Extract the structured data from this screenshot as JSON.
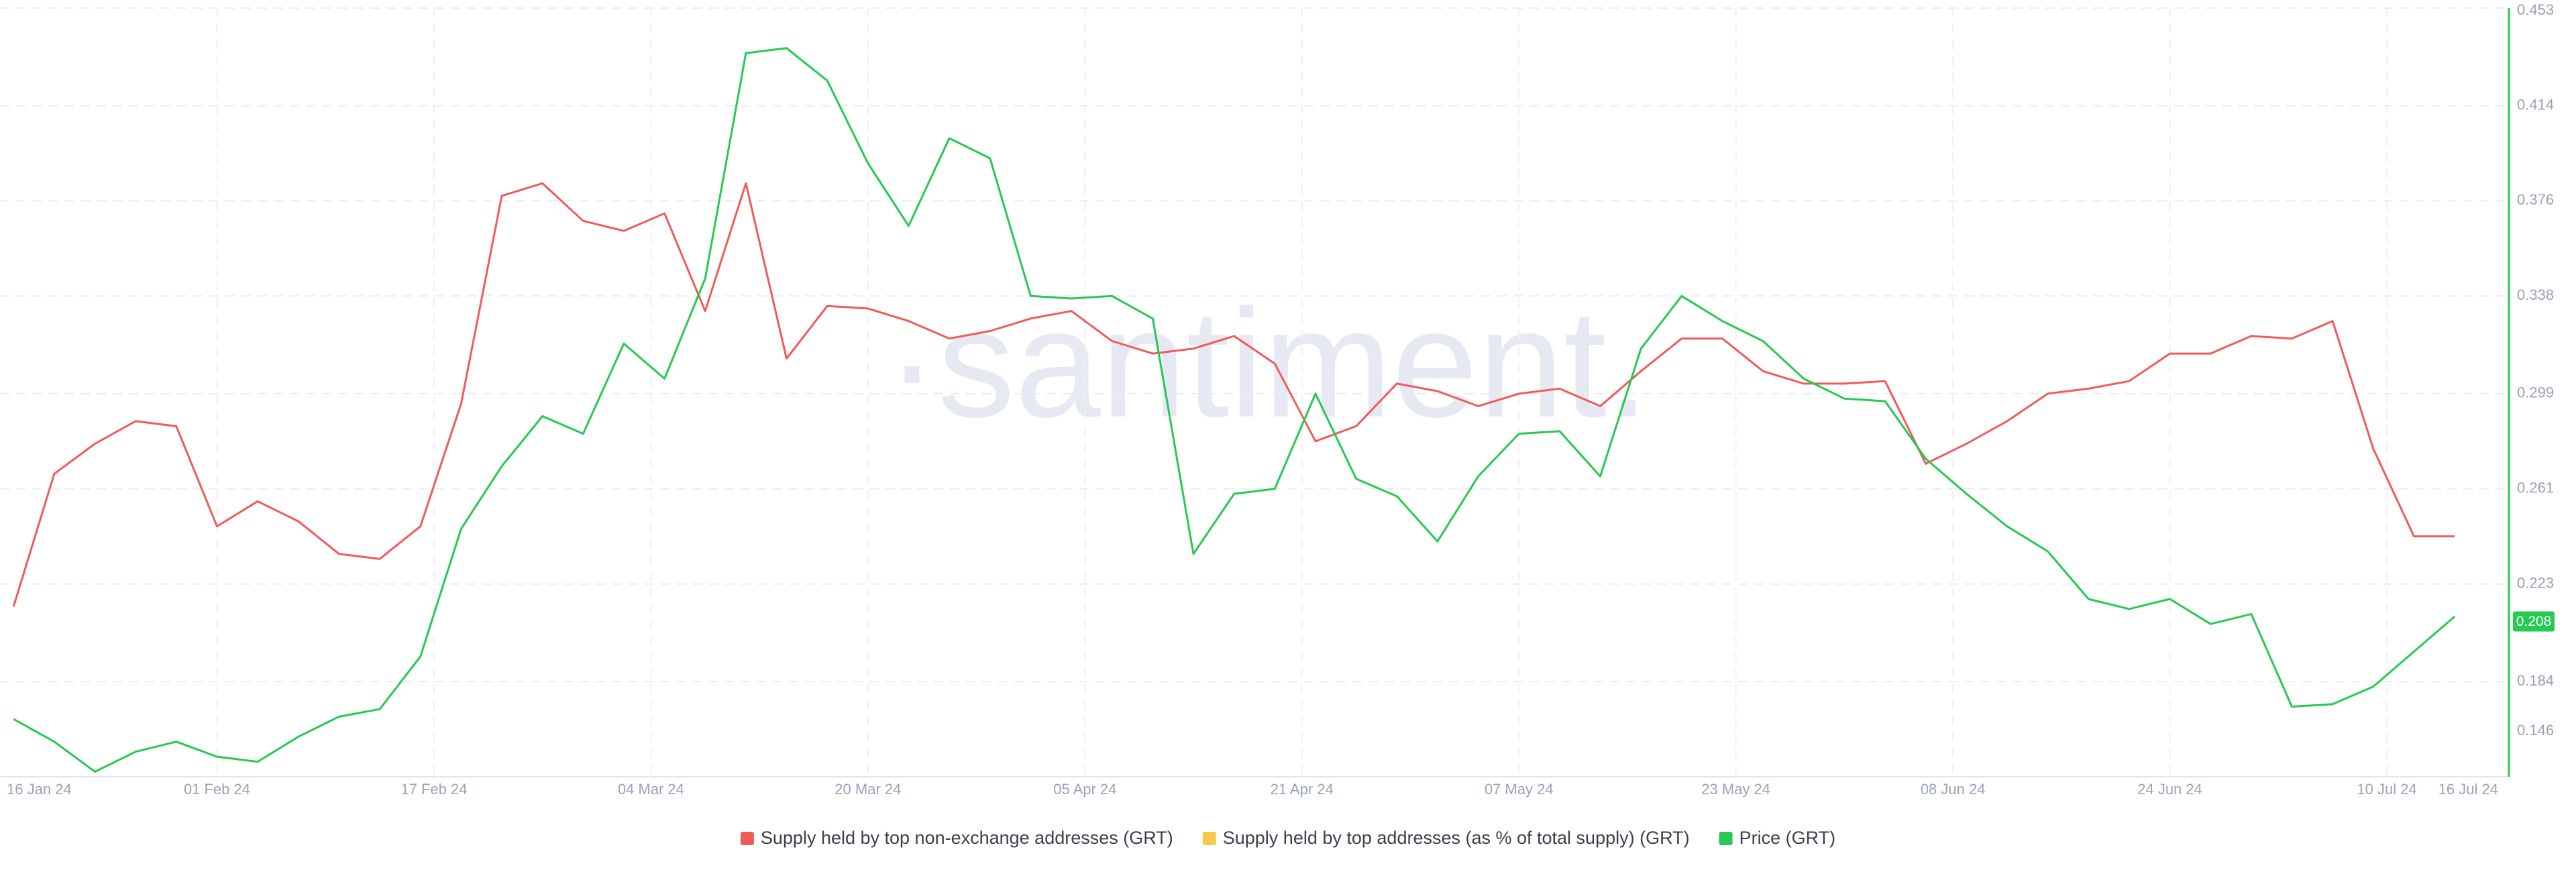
{
  "chart_data": {
    "type": "line",
    "watermark": "·santiment.",
    "x": [
      "17 Jan 24",
      "20 Jan 24",
      "23 Jan 24",
      "26 Jan 24",
      "29 Jan 24",
      "01 Feb 24",
      "04 Feb 24",
      "07 Feb 24",
      "10 Feb 24",
      "13 Feb 24",
      "16 Feb 24",
      "19 Feb 24",
      "22 Feb 24",
      "25 Feb 24",
      "28 Feb 24",
      "02 Mar 24",
      "05 Mar 24",
      "08 Mar 24",
      "11 Mar 24",
      "14 Mar 24",
      "17 Mar 24",
      "20 Mar 24",
      "23 Mar 24",
      "26 Mar 24",
      "29 Mar 24",
      "01 Apr 24",
      "04 Apr 24",
      "07 Apr 24",
      "10 Apr 24",
      "13 Apr 24",
      "16 Apr 24",
      "19 Apr 24",
      "22 Apr 24",
      "25 Apr 24",
      "28 Apr 24",
      "01 May 24",
      "04 May 24",
      "07 May 24",
      "10 May 24",
      "13 May 24",
      "16 May 24",
      "19 May 24",
      "22 May 24",
      "25 May 24",
      "28 May 24",
      "31 May 24",
      "03 Jun 24",
      "06 Jun 24",
      "09 Jun 24",
      "12 Jun 24",
      "15 Jun 24",
      "18 Jun 24",
      "21 Jun 24",
      "24 Jun 24",
      "27 Jun 24",
      "30 Jun 24",
      "03 Jul 24",
      "06 Jul 24",
      "09 Jul 24",
      "12 Jul 24",
      "15 Jul 24"
    ],
    "series": [
      {
        "name": "Supply held by top non-exchange addresses (GRT)",
        "color": "#f25a5a",
        "values": [
          0.214,
          0.267,
          0.279,
          0.288,
          0.286,
          0.246,
          0.256,
          0.248,
          0.235,
          0.233,
          0.246,
          0.295,
          0.378,
          0.383,
          0.368,
          0.364,
          0.371,
          0.332,
          0.383,
          0.313,
          0.334,
          0.333,
          0.328,
          0.321,
          0.324,
          0.329,
          0.332,
          0.32,
          0.315,
          0.317,
          0.322,
          0.311,
          0.28,
          0.286,
          0.303,
          0.3,
          0.294,
          0.299,
          0.301,
          0.294,
          0.308,
          0.321,
          0.321,
          0.308,
          0.303,
          0.303,
          0.304,
          0.271,
          0.279,
          0.288,
          0.299,
          0.301,
          0.304,
          0.315,
          0.315,
          0.322,
          0.321,
          0.328,
          0.277,
          0.242,
          0.242
        ]
      },
      {
        "name": "Supply held by top addresses (as % of total supply) (GRT)",
        "color": "#f7c948"
      },
      {
        "name": "Price (GRT)",
        "color": "#26c953",
        "values": [
          0.169,
          0.16,
          0.148,
          0.156,
          0.16,
          0.154,
          0.152,
          0.162,
          0.17,
          0.173,
          0.194,
          0.245,
          0.27,
          0.29,
          0.283,
          0.319,
          0.305,
          0.345,
          0.435,
          0.437,
          0.424,
          0.391,
          0.366,
          0.401,
          0.393,
          0.338,
          0.337,
          0.338,
          0.329,
          0.235,
          0.259,
          0.261,
          0.299,
          0.265,
          0.258,
          0.24,
          0.266,
          0.283,
          0.284,
          0.266,
          0.317,
          0.338,
          0.328,
          0.32,
          0.305,
          0.297,
          0.296,
          0.273,
          0.259,
          0.246,
          0.236,
          0.217,
          0.213,
          0.217,
          0.207,
          0.211,
          0.174,
          0.175,
          0.182,
          0.196,
          0.21
        ]
      }
    ],
    "price_label": 0.208,
    "xlim": [
      "16 Jan 24",
      "19 Jul 24"
    ],
    "xticks": [
      "16 Jan 24",
      "01 Feb 24",
      "17 Feb 24",
      "04 Mar 24",
      "20 Mar 24",
      "05 Apr 24",
      "21 Apr 24",
      "07 May 24",
      "23 May 24",
      "08 Jun 24",
      "24 Jun 24",
      "10 Jul 24",
      "16 Jul 24"
    ],
    "ylim": [
      0.146,
      0.453
    ],
    "yticks": [
      0.146,
      0.184,
      0.223,
      0.261,
      0.299,
      0.338,
      0.376,
      0.414,
      0.453
    ],
    "grid": true
  }
}
